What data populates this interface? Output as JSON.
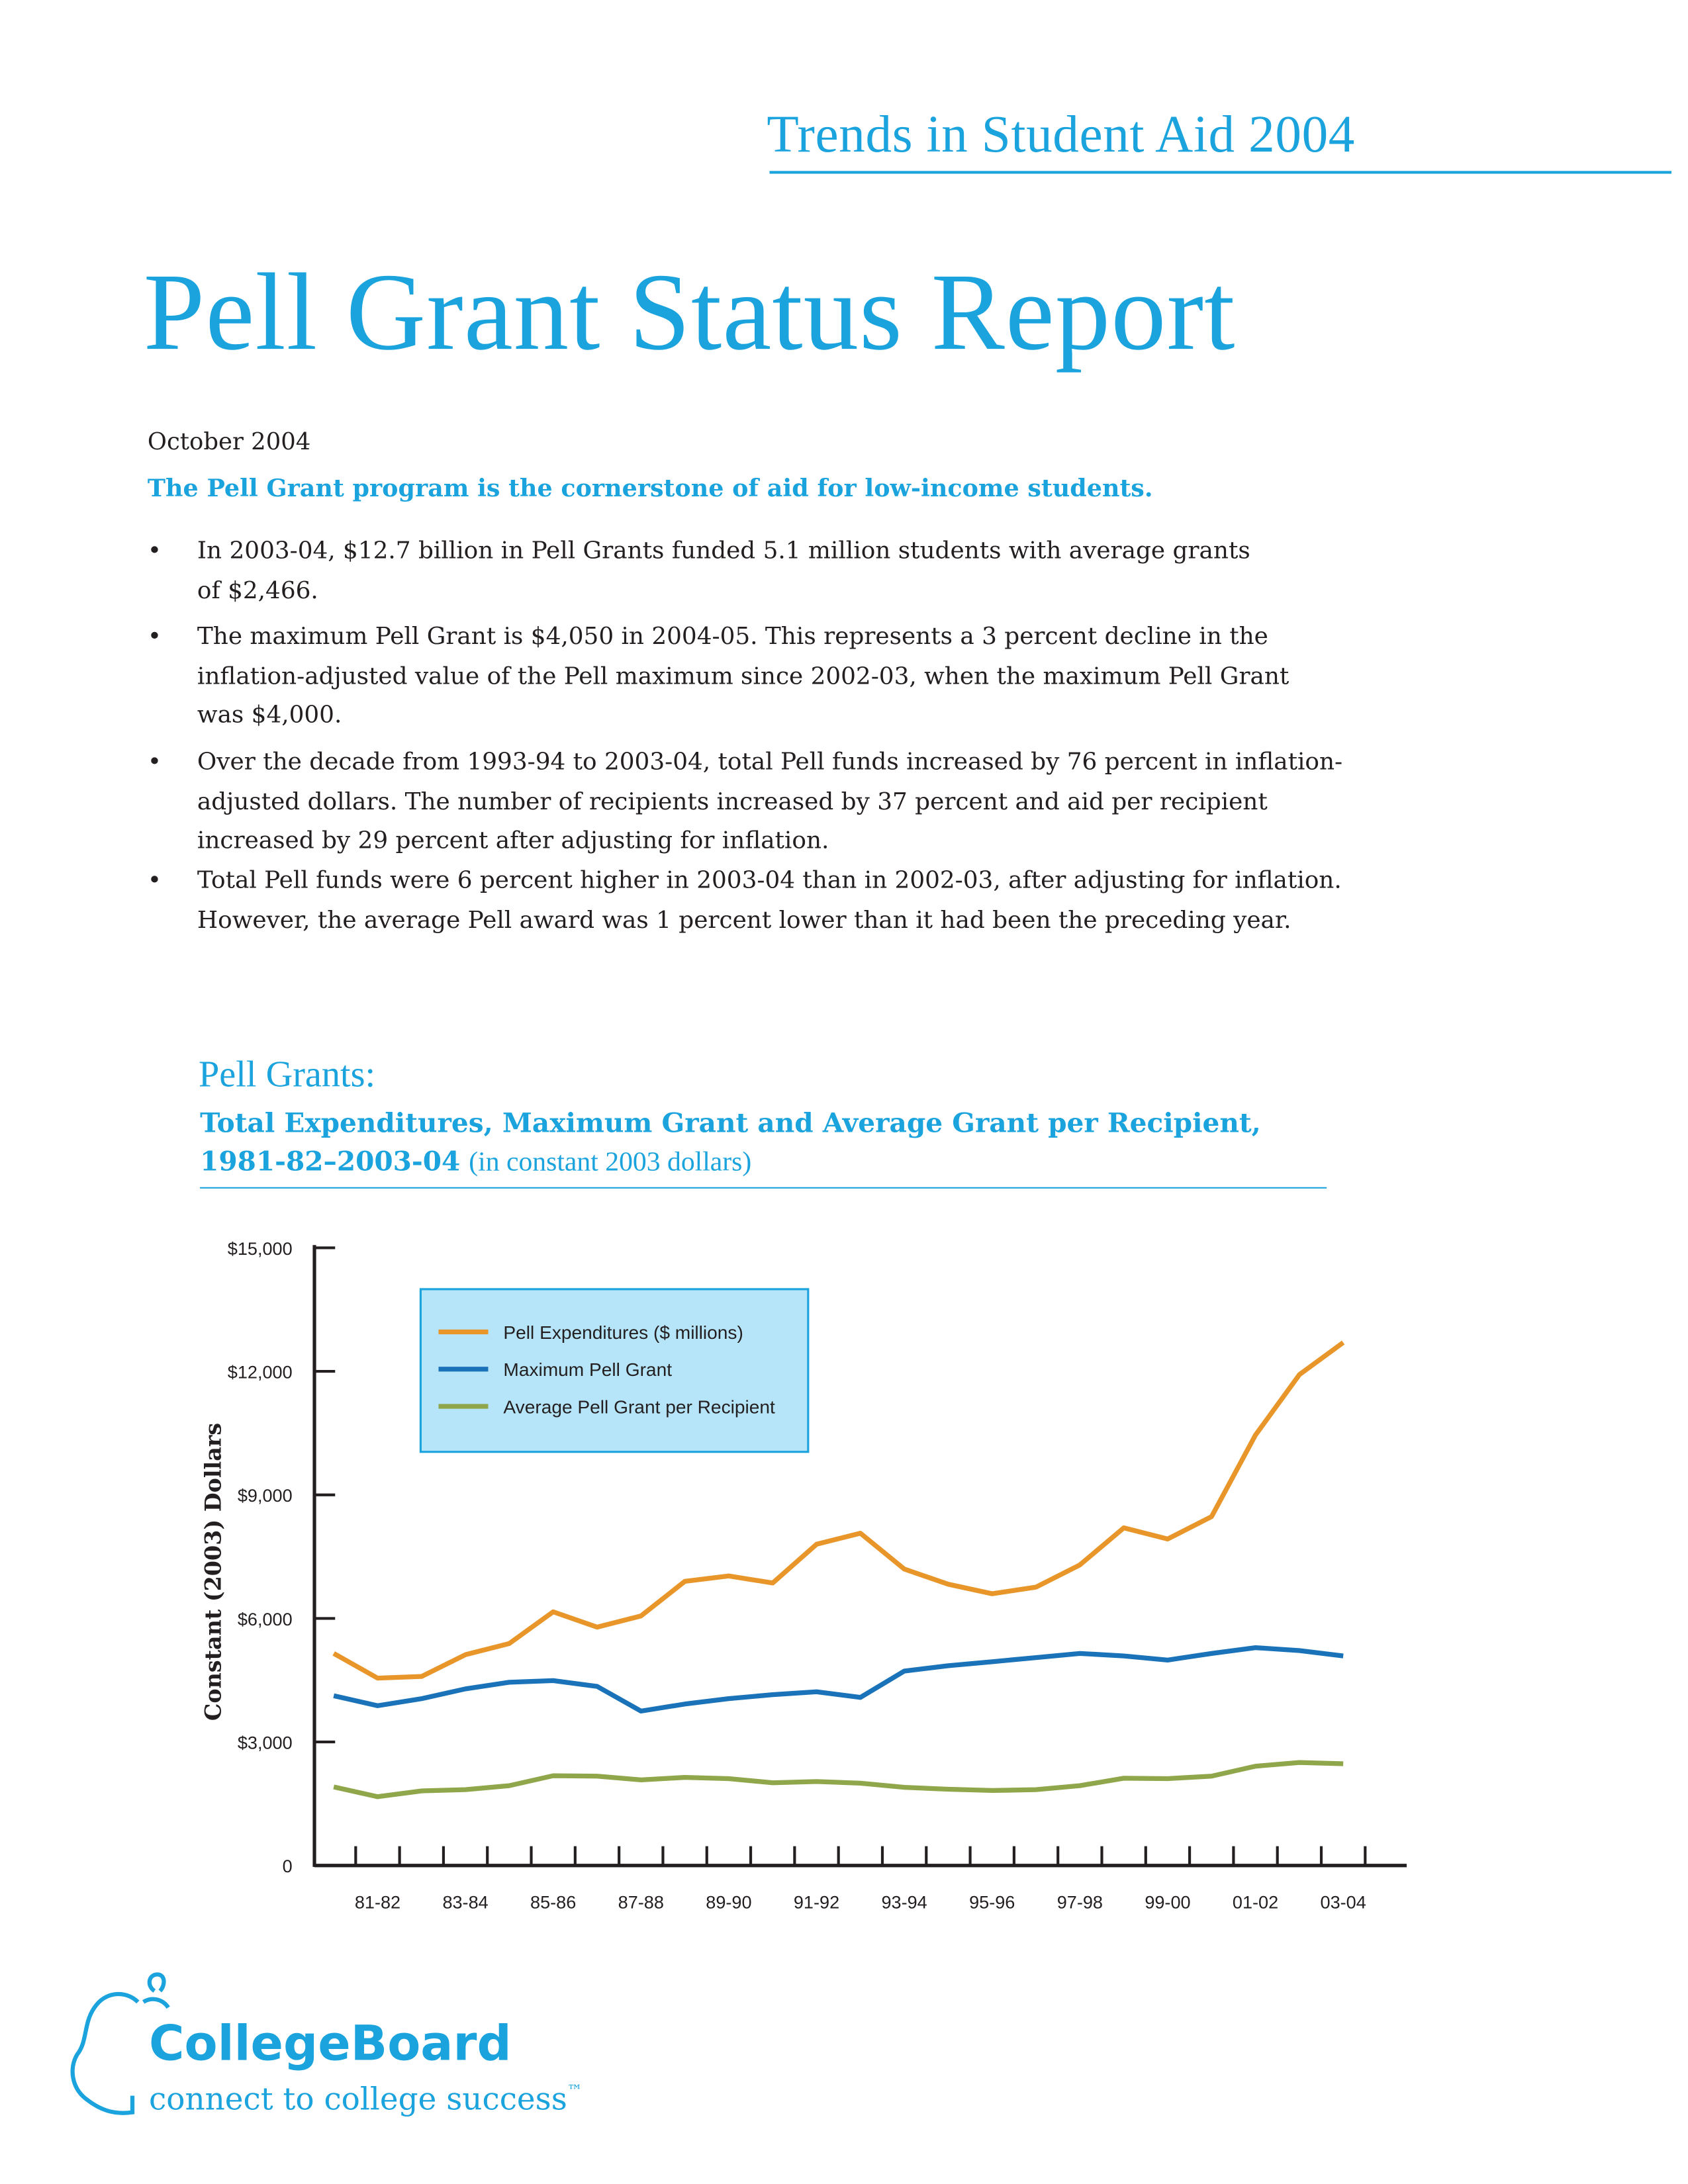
{
  "header": {
    "series": "Trends in Student Aid 2004",
    "title": "Pell Grant Status Report",
    "date": "October 2004"
  },
  "summary": {
    "lead": "The Pell Grant program is the cornerstone of aid for low-income students.",
    "bullets": [
      [
        "In 2003-04, $12.7 billion in Pell Grants funded 5.1 million students with average grants",
        "of $2,466."
      ],
      [
        "The maximum Pell Grant is $4,050 in 2004-05. This represents a 3 percent decline in the",
        "inflation-adjusted value of the Pell maximum since 2002-03, when the maximum Pell Grant",
        "was $4,000."
      ],
      [
        "Over the decade from 1993-94 to 2003-04, total Pell funds increased by 76 percent in inflation-",
        "adjusted dollars. The number of recipients increased by 37 percent and aid per recipient",
        "increased by 29 percent after adjusting for inflation."
      ],
      [
        "Total Pell funds were 6 percent higher in 2003-04 than in 2002-03, after adjusting for inflation.",
        "However, the average Pell award was 1 percent lower than it had been the preceding year."
      ]
    ]
  },
  "chart_data": {
    "type": "line",
    "title": "Pell Grants:",
    "subtitle": "Total Expenditures, Maximum Grant and Average Grant per Recipient, 1981-82–2003-04",
    "unit_note": "(in constant 2003 dollars)",
    "ylabel": "Constant (2003) Dollars",
    "categories": [
      null,
      "81-82",
      null,
      "83-84",
      null,
      "85-86",
      null,
      "87-88",
      null,
      "89-90",
      null,
      "91-92",
      null,
      "93-94",
      null,
      "95-96",
      null,
      "97-98",
      null,
      "99-00",
      null,
      "01-02",
      null,
      "03-04"
    ],
    "series": [
      {
        "name": "Pell Expenditures ($ millions)",
        "color": "#e8962a",
        "values": [
          5150,
          4550,
          4590,
          5120,
          5390,
          6160,
          5790,
          6060,
          6900,
          7030,
          6860,
          7800,
          8070,
          7200,
          6830,
          6600,
          6760,
          7300,
          8200,
          7930,
          8470,
          10450,
          11920,
          12700
        ]
      },
      {
        "name": "Maximum Pell Grant",
        "color": "#1a72b8",
        "values": [
          4120,
          3880,
          4050,
          4290,
          4450,
          4490,
          4350,
          3750,
          3920,
          4050,
          4150,
          4220,
          4080,
          4720,
          4850,
          4950,
          5050,
          5150,
          5090,
          4990,
          5150,
          5290,
          5220,
          5090
        ]
      },
      {
        "name": "Average Pell Grant per Recipient",
        "color": "#8fa64a",
        "values": [
          1910,
          1670,
          1810,
          1840,
          1940,
          2180,
          2170,
          2080,
          2140,
          2110,
          2010,
          2040,
          2000,
          1900,
          1850,
          1820,
          1840,
          1940,
          2120,
          2110,
          2170,
          2410,
          2500,
          2470
        ]
      }
    ],
    "ylim": [
      0,
      15000
    ],
    "yticks": [
      0,
      {
        "value": 3000,
        "label": "$3,000"
      },
      {
        "value": 6000,
        "label": "$6,000"
      },
      {
        "value": 9000,
        "label": "$9,000"
      },
      {
        "value": 12000,
        "label": "$12,000"
      },
      {
        "value": 15000,
        "label": "$15,000"
      }
    ],
    "grid": false,
    "legend": "upper left",
    "legend_fill": "#b6e4f8",
    "legend_border": "#1aa3dd"
  },
  "logo": {
    "name": "CollegeBoard",
    "tagline": "connect to college success",
    "trademark": "™"
  }
}
